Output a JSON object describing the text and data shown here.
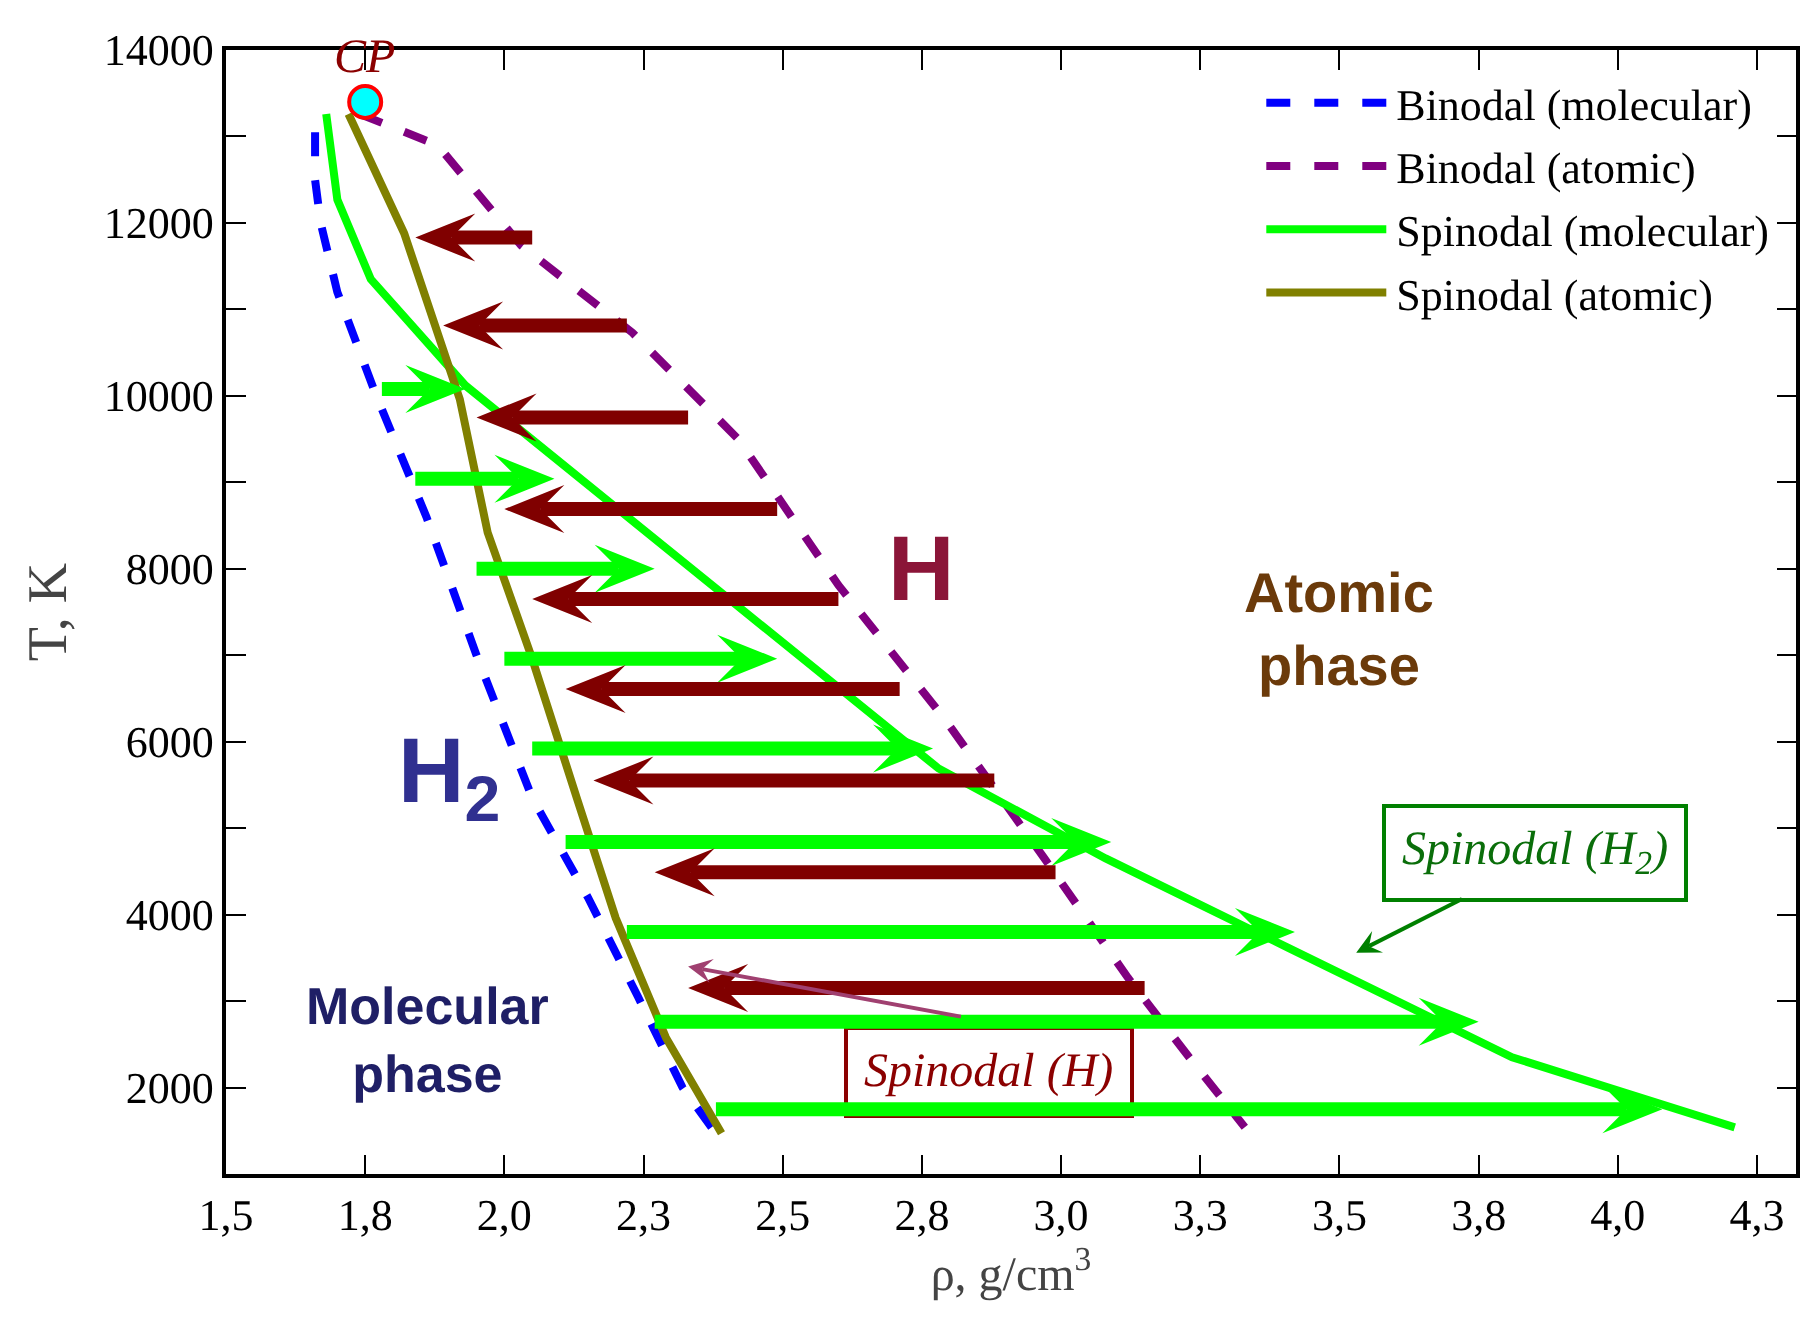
{
  "chart_data": {
    "type": "line",
    "xlabel": "ρ, g/cm$^{3}$",
    "ylabel": "T, K",
    "xlim": [
      1.5,
      4.32
    ],
    "ylim": [
      1000,
      14000
    ],
    "xticks": [
      {
        "value": 1.5,
        "label": "1,5"
      },
      {
        "value": 1.75,
        "label": "1,8"
      },
      {
        "value": 2.0,
        "label": "2,0"
      },
      {
        "value": 2.25,
        "label": "2,3"
      },
      {
        "value": 2.5,
        "label": "2,5"
      },
      {
        "value": 2.75,
        "label": "2,8"
      },
      {
        "value": 3.0,
        "label": "3,0"
      },
      {
        "value": 3.25,
        "label": "3,3"
      },
      {
        "value": 3.5,
        "label": "3,5"
      },
      {
        "value": 3.75,
        "label": "3,8"
      },
      {
        "value": 4.0,
        "label": "4,0"
      },
      {
        "value": 4.25,
        "label": "4,3"
      }
    ],
    "yticks": [
      {
        "value": 1000,
        "label": null
      },
      2000,
      {
        "value": 3000,
        "label": null
      },
      4000,
      {
        "value": 5000,
        "label": null
      },
      6000,
      {
        "value": 7000,
        "label": null
      },
      8000,
      {
        "value": 9000,
        "label": null
      },
      10000,
      {
        "value": 11000,
        "label": null
      },
      12000,
      {
        "value": 13000,
        "label": null
      },
      14000
    ],
    "grid": false,
    "legend": "top right",
    "series": [
      {
        "name": "Binodal (molecular)",
        "color": "#0000ff",
        "line_style": "dashed",
        "x": [
          1.66,
          1.66,
          1.67,
          1.7,
          1.77,
          1.86,
          1.95,
          2.05,
          2.15,
          2.24,
          2.32,
          2.38
        ],
        "values": [
          13050,
          12500,
          12000,
          11200,
          10000,
          8600,
          7000,
          5350,
          4200,
          3050,
          2000,
          1470
        ]
      },
      {
        "name": "Binodal (atomic)",
        "color": "#800080",
        "line_style": "dashed",
        "x": [
          1.74,
          1.88,
          2.03,
          2.23,
          2.42,
          2.6,
          2.79,
          2.97,
          3.12,
          3.23,
          3.33
        ],
        "values": [
          13260,
          12900,
          11740,
          10730,
          9500,
          7810,
          6270,
          4650,
          3270,
          2350,
          1540
        ]
      },
      {
        "name": "Spinodal (molecular)",
        "color": "#00ff00",
        "line_style": "solid",
        "x": [
          1.68,
          1.7,
          1.76,
          1.93,
          2.39,
          2.78,
          3.08,
          3.41,
          3.81,
          4.21
        ],
        "values": [
          13260,
          12270,
          11350,
          10120,
          7720,
          5690,
          4650,
          3610,
          2350,
          1540
        ]
      },
      {
        "name": "Spinodal (atomic)",
        "color": "#808000",
        "line_style": "solid",
        "x": [
          1.72,
          1.82,
          1.92,
          1.97,
          2.05,
          2.13,
          2.2,
          2.29,
          2.39
        ],
        "values": [
          13260,
          11880,
          9960,
          8420,
          6960,
          5350,
          3960,
          2580,
          1470
        ]
      },
      {
        "type": "scatter",
        "marker": "circle",
        "color": "#00ffff",
        "x": [
          1.75
        ],
        "values": [
          13400
        ]
      }
    ],
    "annotations": [
      {
        "text": "CP",
        "x": 1.75,
        "y": 13400
      },
      "H",
      "Atomic\nphase",
      "H$_{2}$",
      "Molecular\nphase",
      "Spinodal (H$_{2}$)",
      "Spinodal (H)"
    ]
  }
}
